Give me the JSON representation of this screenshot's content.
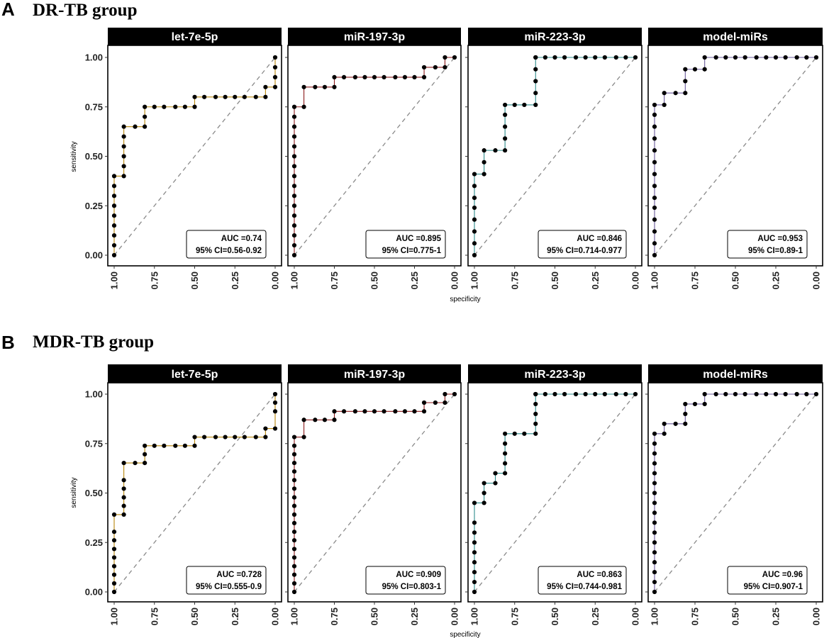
{
  "figure": {
    "sections": [
      {
        "label": "A",
        "title": "DR-TB group"
      },
      {
        "label": "B",
        "title": "MDR-TB group"
      }
    ],
    "xlabel": "specificity",
    "ylabel": "sensitivity",
    "y_ticks": [
      "0.00",
      "0.25",
      "0.50",
      "0.75",
      "1.00"
    ],
    "x_ticks": [
      "1.00",
      "0.75",
      "0.50",
      "0.25",
      "0.00"
    ]
  },
  "colors": {
    "strip_bg": "#000000",
    "strip_text": "#ffffff",
    "diagonal": "#8a8a8a",
    "line_let7e": "#b8860b",
    "line_mir197": "#8b1a1a",
    "line_mir223": "#2e8b8b",
    "line_model": "#6a5a9a"
  },
  "chart_data": [
    {
      "type": "line",
      "section": "A",
      "panel": "let-7e-5p",
      "title": "let-7e-5p",
      "xlabel": "specificity",
      "ylabel": "sensitivity",
      "xlim": [
        1,
        0
      ],
      "ylim": [
        0,
        1
      ],
      "auc_label": "AUC =0.74",
      "ci_label": "95% CI=0.56-0.92",
      "x": [
        1,
        1,
        1,
        1,
        1,
        1,
        1,
        1,
        1,
        0.94,
        0.94,
        0.94,
        0.94,
        0.94,
        0.94,
        0.87,
        0.81,
        0.81,
        0.81,
        0.75,
        0.69,
        0.62,
        0.56,
        0.5,
        0.5,
        0.44,
        0.37,
        0.31,
        0.25,
        0.19,
        0.12,
        0.06,
        0.06,
        0,
        0,
        0,
        0
      ],
      "y": [
        0,
        0.05,
        0.1,
        0.15,
        0.2,
        0.25,
        0.3,
        0.35,
        0.4,
        0.4,
        0.45,
        0.5,
        0.55,
        0.6,
        0.65,
        0.65,
        0.65,
        0.7,
        0.75,
        0.75,
        0.75,
        0.75,
        0.75,
        0.75,
        0.8,
        0.8,
        0.8,
        0.8,
        0.8,
        0.8,
        0.8,
        0.8,
        0.85,
        0.85,
        0.9,
        0.95,
        1
      ]
    },
    {
      "type": "line",
      "section": "A",
      "panel": "miR-197-3p",
      "title": "miR-197-3p",
      "xlabel": "specificity",
      "ylabel": "sensitivity",
      "xlim": [
        1,
        0
      ],
      "ylim": [
        0,
        1
      ],
      "auc_label": "AUC =0.895",
      "ci_label": "95% CI=0.775-1",
      "x": [
        1,
        1,
        1,
        1,
        1,
        1,
        1,
        1,
        1,
        1,
        1,
        1,
        1,
        1,
        1,
        1,
        0.94,
        0.94,
        0.87,
        0.81,
        0.75,
        0.75,
        0.69,
        0.62,
        0.56,
        0.5,
        0.44,
        0.37,
        0.31,
        0.25,
        0.19,
        0.19,
        0.12,
        0.06,
        0.06,
        0
      ],
      "y": [
        0,
        0.05,
        0.1,
        0.15,
        0.2,
        0.25,
        0.3,
        0.35,
        0.4,
        0.45,
        0.5,
        0.55,
        0.6,
        0.65,
        0.7,
        0.75,
        0.75,
        0.85,
        0.85,
        0.85,
        0.85,
        0.9,
        0.9,
        0.9,
        0.9,
        0.9,
        0.9,
        0.9,
        0.9,
        0.9,
        0.9,
        0.95,
        0.95,
        0.95,
        1,
        1
      ]
    },
    {
      "type": "line",
      "section": "A",
      "panel": "miR-223-3p",
      "title": "miR-223-3p",
      "xlabel": "specificity",
      "ylabel": "sensitivity",
      "xlim": [
        1,
        0
      ],
      "ylim": [
        0,
        1
      ],
      "auc_label": "AUC =0.846",
      "ci_label": "95% CI=0.714-0.977",
      "x": [
        1,
        1,
        1,
        1,
        1,
        1,
        1,
        1,
        0.94,
        0.94,
        0.94,
        0.87,
        0.81,
        0.81,
        0.81,
        0.81,
        0.81,
        0.75,
        0.69,
        0.62,
        0.62,
        0.62,
        0.62,
        0.62,
        0.62,
        0.56,
        0.5,
        0.44,
        0.37,
        0.31,
        0.25,
        0.19,
        0.12,
        0.06,
        0
      ],
      "y": [
        0,
        0.06,
        0.12,
        0.18,
        0.24,
        0.29,
        0.35,
        0.41,
        0.41,
        0.47,
        0.53,
        0.53,
        0.53,
        0.59,
        0.65,
        0.71,
        0.76,
        0.76,
        0.76,
        0.76,
        0.82,
        0.88,
        0.94,
        1,
        1,
        1,
        1,
        1,
        1,
        1,
        1,
        1,
        1,
        1,
        1
      ]
    },
    {
      "type": "line",
      "section": "A",
      "panel": "model-miRs",
      "title": "model-miRs",
      "xlabel": "specificity",
      "ylabel": "sensitivity",
      "xlim": [
        1,
        0
      ],
      "ylim": [
        0,
        1
      ],
      "auc_label": "AUC =0.953",
      "ci_label": "95% CI=0.89-1",
      "x": [
        1,
        1,
        1,
        1,
        1,
        1,
        1,
        1,
        1,
        1,
        1,
        1,
        1,
        1,
        0.94,
        0.94,
        0.87,
        0.81,
        0.81,
        0.81,
        0.75,
        0.69,
        0.69,
        0.62,
        0.56,
        0.5,
        0.44,
        0.37,
        0.31,
        0.25,
        0.19,
        0.12,
        0.06,
        0
      ],
      "y": [
        0,
        0.06,
        0.12,
        0.18,
        0.24,
        0.29,
        0.35,
        0.41,
        0.47,
        0.53,
        0.59,
        0.65,
        0.71,
        0.76,
        0.76,
        0.82,
        0.82,
        0.82,
        0.88,
        0.94,
        0.94,
        0.94,
        1,
        1,
        1,
        1,
        1,
        1,
        1,
        1,
        1,
        1,
        1,
        1
      ]
    },
    {
      "type": "line",
      "section": "B",
      "panel": "let-7e-5p",
      "title": "let-7e-5p",
      "xlabel": "specificity",
      "ylabel": "sensitivity",
      "xlim": [
        1,
        0
      ],
      "ylim": [
        0,
        1
      ],
      "auc_label": "AUC =0.728",
      "ci_label": "95% CI=0.555-0.9",
      "x": [
        1,
        1,
        1,
        1,
        1,
        1,
        1,
        1,
        1,
        0.94,
        0.94,
        0.94,
        0.94,
        0.94,
        0.94,
        0.87,
        0.81,
        0.81,
        0.81,
        0.75,
        0.69,
        0.62,
        0.56,
        0.5,
        0.5,
        0.44,
        0.37,
        0.31,
        0.25,
        0.19,
        0.12,
        0.06,
        0.06,
        0,
        0,
        0,
        0
      ],
      "y": [
        0,
        0.043,
        0.087,
        0.13,
        0.174,
        0.217,
        0.261,
        0.304,
        0.391,
        0.391,
        0.435,
        0.478,
        0.522,
        0.565,
        0.652,
        0.652,
        0.652,
        0.696,
        0.739,
        0.739,
        0.739,
        0.739,
        0.739,
        0.739,
        0.783,
        0.783,
        0.783,
        0.783,
        0.783,
        0.783,
        0.783,
        0.783,
        0.826,
        0.826,
        0.913,
        0.957,
        1
      ]
    },
    {
      "type": "line",
      "section": "B",
      "panel": "miR-197-3p",
      "title": "miR-197-3p",
      "xlabel": "specificity",
      "ylabel": "sensitivity",
      "xlim": [
        1,
        0
      ],
      "ylim": [
        0,
        1
      ],
      "auc_label": "AUC =0.909",
      "ci_label": "95% CI=0.803-1",
      "x": [
        1,
        1,
        1,
        1,
        1,
        1,
        1,
        1,
        1,
        1,
        1,
        1,
        1,
        1,
        1,
        1,
        1,
        1,
        1,
        0.94,
        0.94,
        0.87,
        0.81,
        0.75,
        0.75,
        0.69,
        0.62,
        0.56,
        0.5,
        0.44,
        0.37,
        0.31,
        0.25,
        0.19,
        0.19,
        0.12,
        0.06,
        0.06,
        0
      ],
      "y": [
        0,
        0.043,
        0.087,
        0.13,
        0.174,
        0.217,
        0.261,
        0.304,
        0.348,
        0.391,
        0.435,
        0.478,
        0.522,
        0.565,
        0.609,
        0.652,
        0.696,
        0.739,
        0.783,
        0.783,
        0.87,
        0.87,
        0.87,
        0.87,
        0.913,
        0.913,
        0.913,
        0.913,
        0.913,
        0.913,
        0.913,
        0.913,
        0.913,
        0.913,
        0.957,
        0.957,
        0.957,
        1,
        1
      ]
    },
    {
      "type": "line",
      "section": "B",
      "panel": "miR-223-3p",
      "title": "miR-223-3p",
      "xlabel": "specificity",
      "ylabel": "sensitivity",
      "xlim": [
        1,
        0
      ],
      "ylim": [
        0,
        1
      ],
      "auc_label": "AUC =0.863",
      "ci_label": "95% CI=0.744-0.981",
      "x": [
        1,
        1,
        1,
        1,
        1,
        1,
        1,
        1,
        1,
        0.94,
        0.94,
        0.94,
        0.87,
        0.87,
        0.81,
        0.81,
        0.81,
        0.81,
        0.81,
        0.75,
        0.69,
        0.62,
        0.62,
        0.62,
        0.62,
        0.62,
        0.62,
        0.56,
        0.5,
        0.44,
        0.37,
        0.31,
        0.25,
        0.19,
        0.12,
        0.06,
        0
      ],
      "y": [
        0,
        0.05,
        0.1,
        0.15,
        0.2,
        0.25,
        0.3,
        0.35,
        0.45,
        0.45,
        0.5,
        0.55,
        0.55,
        0.6,
        0.6,
        0.65,
        0.7,
        0.75,
        0.8,
        0.8,
        0.8,
        0.8,
        0.85,
        0.9,
        0.95,
        1,
        1,
        1,
        1,
        1,
        1,
        1,
        1,
        1,
        1,
        1,
        1
      ]
    },
    {
      "type": "line",
      "section": "B",
      "panel": "model-miRs",
      "title": "model-miRs",
      "xlabel": "specificity",
      "ylabel": "sensitivity",
      "xlim": [
        1,
        0
      ],
      "ylim": [
        0,
        1
      ],
      "auc_label": "AUC =0.96",
      "ci_label": "95% CI=0.907-1",
      "x": [
        1,
        1,
        1,
        1,
        1,
        1,
        1,
        1,
        1,
        1,
        1,
        1,
        1,
        1,
        1,
        1,
        1,
        0.94,
        0.94,
        0.87,
        0.81,
        0.81,
        0.81,
        0.75,
        0.69,
        0.69,
        0.62,
        0.56,
        0.5,
        0.44,
        0.37,
        0.31,
        0.25,
        0.19,
        0.12,
        0.06,
        0
      ],
      "y": [
        0,
        0.05,
        0.1,
        0.15,
        0.2,
        0.25,
        0.3,
        0.35,
        0.4,
        0.45,
        0.5,
        0.55,
        0.6,
        0.65,
        0.7,
        0.75,
        0.8,
        0.8,
        0.85,
        0.85,
        0.85,
        0.9,
        0.95,
        0.95,
        0.95,
        1,
        1,
        1,
        1,
        1,
        1,
        1,
        1,
        1,
        1,
        1,
        1
      ]
    }
  ]
}
